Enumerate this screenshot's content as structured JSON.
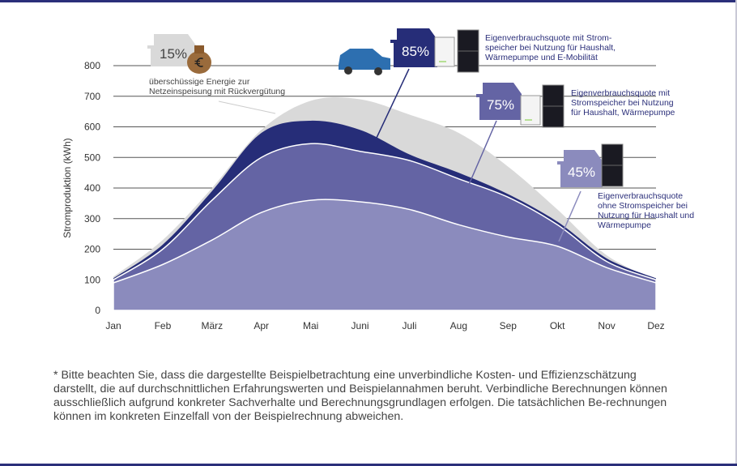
{
  "chart_data": {
    "type": "area",
    "ylabel": "Stromproduktion (kWh)",
    "xlabel": "",
    "categories": [
      "Jan",
      "Feb",
      "März",
      "Apr",
      "Mai",
      "Juni",
      "Juli",
      "Aug",
      "Sep",
      "Okt",
      "Nov",
      "Dez"
    ],
    "yticks": [
      0,
      100,
      200,
      300,
      400,
      500,
      600,
      700,
      800
    ],
    "ylim": [
      0,
      800
    ],
    "grid": true,
    "series": [
      {
        "color": "#d9d9d9",
        "values": [
          110,
          230,
          400,
          590,
          685,
          690,
          640,
          580,
          470,
          330,
          180,
          100
        ]
      },
      {
        "color": "#262d78",
        "values": [
          105,
          215,
          390,
          580,
          620,
          590,
          510,
          450,
          380,
          290,
          170,
          105
        ]
      },
      {
        "color": "#6464a4",
        "values": [
          100,
          200,
          360,
          500,
          545,
          520,
          490,
          430,
          370,
          280,
          160,
          100
        ]
      },
      {
        "color": "#8b8bbd",
        "values": [
          90,
          150,
          230,
          320,
          360,
          355,
          330,
          280,
          240,
          210,
          140,
          90
        ]
      }
    ],
    "annotations": [
      {
        "badge": "15%",
        "lines": [
          "überschüssige Energie zur",
          "Netzeinspeisung mit Rückvergütung"
        ]
      },
      {
        "badge": "85%",
        "lines": [
          "Eigenverbrauchsquote mit  Strom-",
          "speicher bei Nutzung für Haushalt,",
          "Wärmepumpe und E-Mobilität"
        ]
      },
      {
        "badge": "75%",
        "lines": [
          "Eigenverbrauchsquote mit",
          "Stromspeicher bei Nutzung",
          "für Haushalt, Wärmepumpe"
        ]
      },
      {
        "badge": "45%",
        "lines": [
          "Eigenverbrauchsquote",
          "ohne Stromspeicher bei",
          "Nutzung für Haushalt und",
          "Wärmepumpe"
        ]
      }
    ]
  },
  "footnote": "* Bitte beachten Sie, dass die dargestellte Beispielbetrachtung eine unverbindliche Kosten- und Effizienzschätzung darstellt, die auf durchschnittlichen Erfahrungswerten und Beispielannahmen beruht. Verbindliche Berechnungen können ausschließlich aufgrund konkreter Sachverhalte und Berechnungsgrundlagen erfolgen. Die tatsächlichen Be-rechnungen können im konkreten Einzelfall von der Beispielrechnung abweichen."
}
